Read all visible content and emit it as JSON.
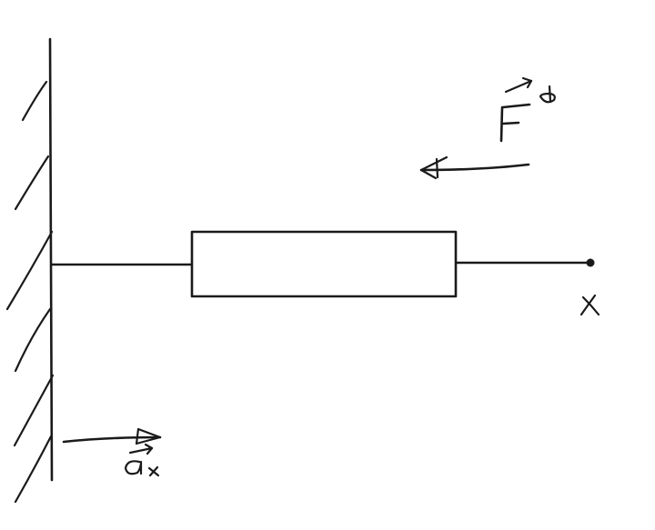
{
  "colors": {
    "ink": "#1a1a1a",
    "background": "#ffffff"
  },
  "labels": {
    "force": "F",
    "force_superscript": "ϑ",
    "acceleration": "a",
    "acceleration_subscript": "x",
    "position": "x"
  }
}
